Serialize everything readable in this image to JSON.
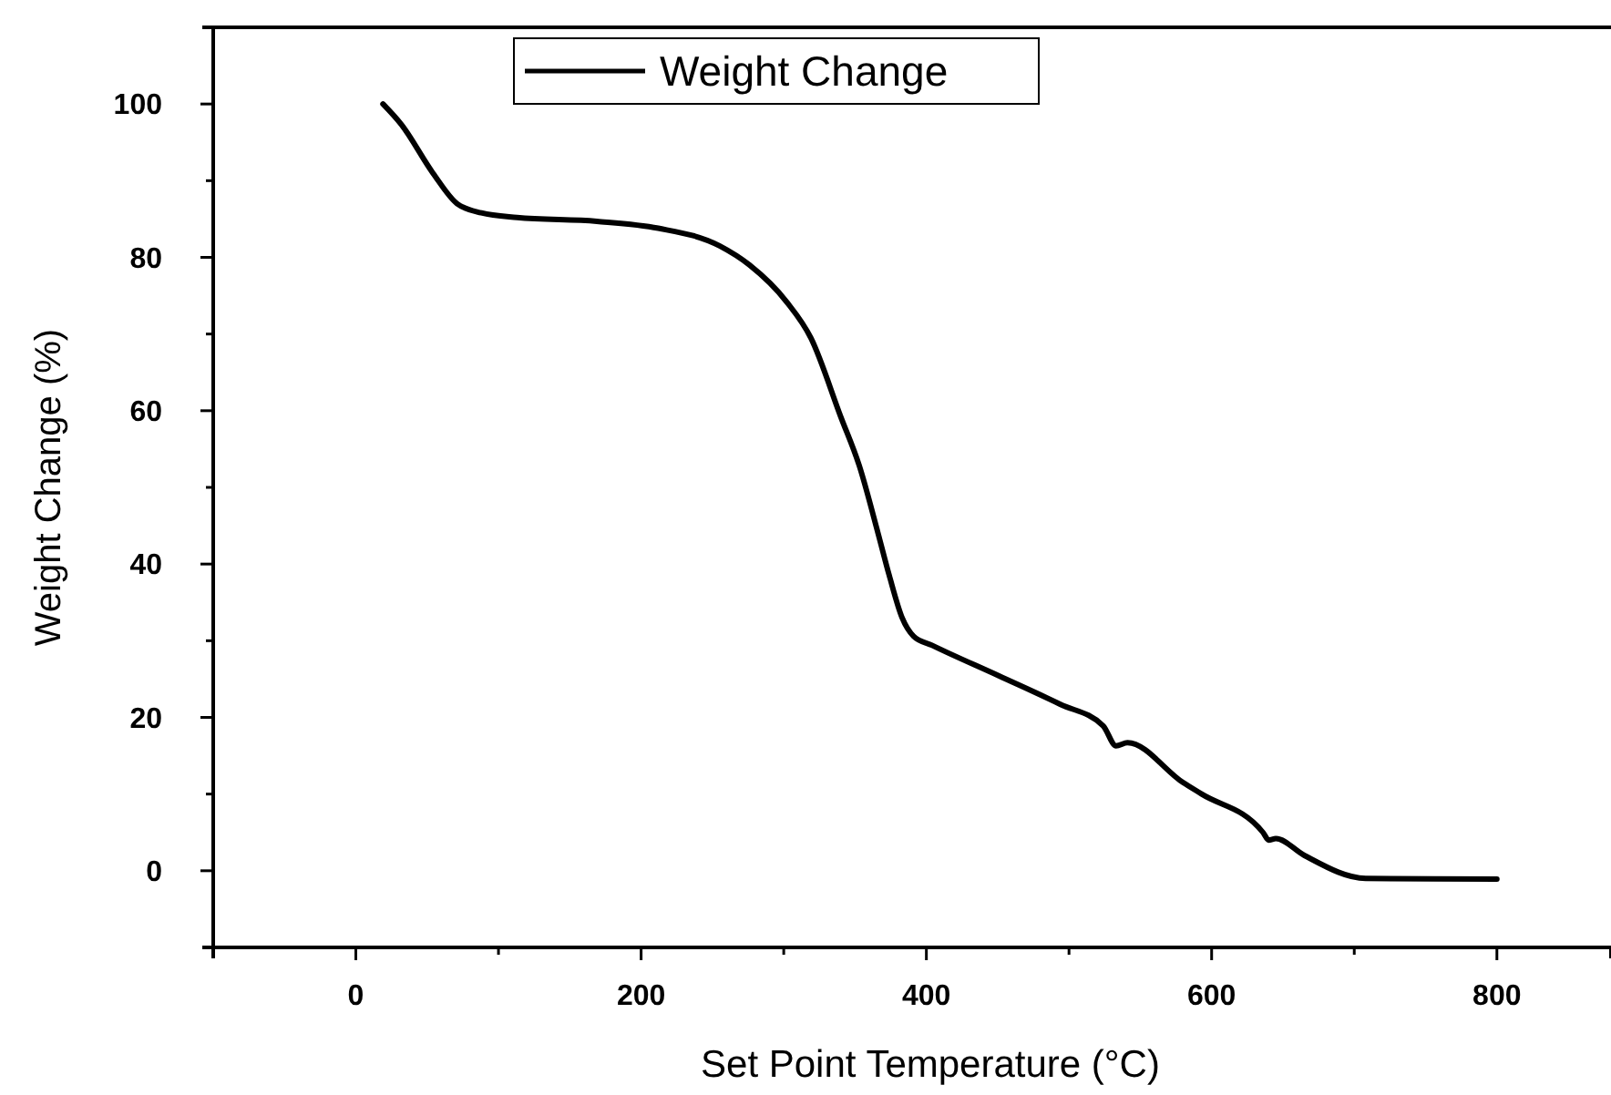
{
  "chart_data": {
    "type": "line",
    "xlabel": "Set Point Temperature (°C)",
    "ylabel": "Weight Change (%)",
    "xlim": [
      -100,
      880
    ],
    "ylim": [
      -10,
      110
    ],
    "xticks": [
      {
        "value": -100,
        "label": null
      },
      0,
      {
        "value": 100,
        "label": null
      },
      200,
      {
        "value": 300,
        "label": null
      },
      400,
      {
        "value": 500,
        "label": null
      },
      600,
      {
        "value": 700,
        "label": null
      },
      800
    ],
    "yticks": [
      {
        "value": -10,
        "label": null
      },
      0,
      {
        "value": 10,
        "label": null
      },
      20,
      {
        "value": 30,
        "label": null
      },
      40,
      {
        "value": 50,
        "label": null
      },
      60,
      {
        "value": 70,
        "label": null
      },
      80,
      {
        "value": 90,
        "label": null
      },
      100,
      {
        "value": 110,
        "label": null
      }
    ],
    "grid": false,
    "legend": "top",
    "line_style": "solid",
    "marker": "none",
    "series": [
      {
        "name": "Weight Change",
        "color": "#000000",
        "x": [
          19,
          32,
          54,
          71,
          88,
          113,
          169,
          212,
          255,
          276,
          302,
          319,
          340,
          353,
          366,
          374,
          383,
          391,
          404,
          451,
          494,
          524,
          533,
          541,
          580,
          593,
          636,
          640,
          645,
          665,
          708,
          800
        ],
        "values": [
          100,
          97.3,
          91,
          87,
          85.8,
          85.2,
          84.7,
          83.8,
          81.5,
          79,
          74.2,
          69.5,
          59.2,
          52.8,
          44.1,
          38.5,
          33,
          30.6,
          29.4,
          25.4,
          21.7,
          18.9,
          16.3,
          16.7,
          11.5,
          10,
          5,
          4,
          4.2,
          2,
          -1,
          -1.1
        ]
      }
    ]
  }
}
